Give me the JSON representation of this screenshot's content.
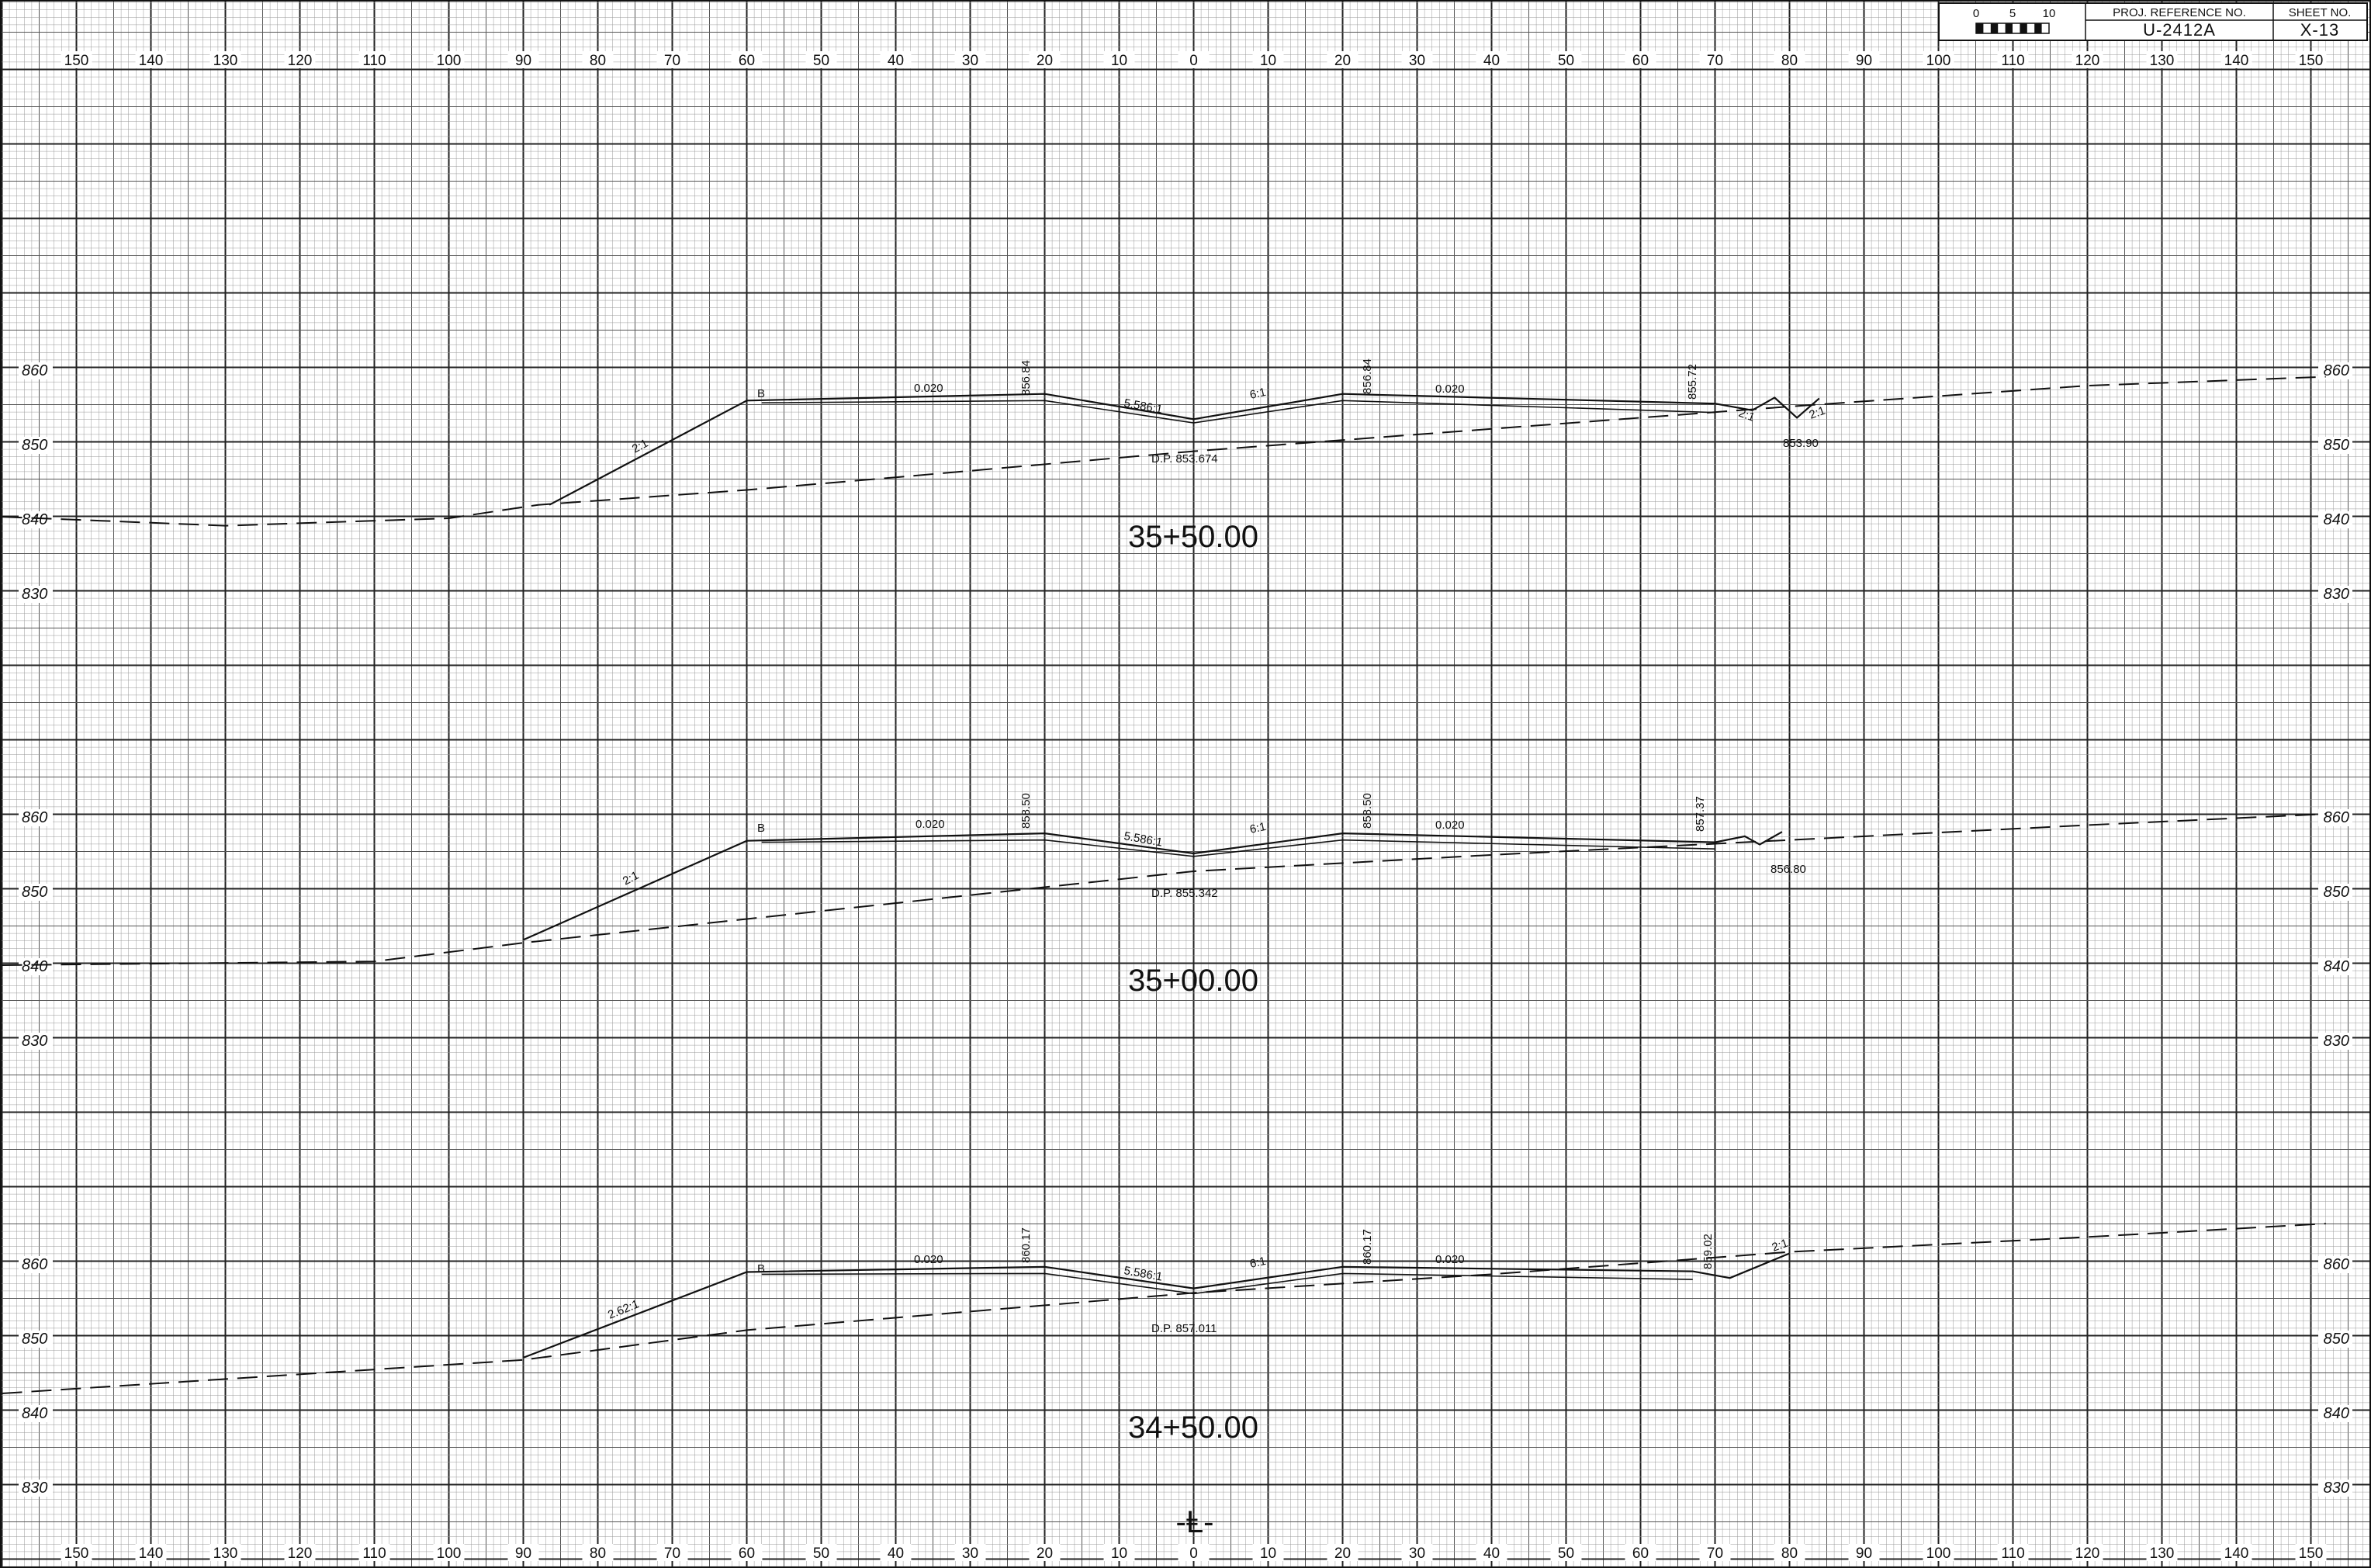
{
  "title_block": {
    "scale": {
      "ticks": [
        "0",
        "5",
        "10"
      ]
    },
    "proj_ref_label": "PROJ. REFERENCE NO.",
    "proj_ref_value": "U-2412A",
    "sheet_no_label": "SHEET NO.",
    "sheet_no_value": "X-13"
  },
  "offset_labels": [
    "150",
    "140",
    "130",
    "120",
    "110",
    "100",
    "90",
    "80",
    "70",
    "60",
    "50",
    "40",
    "30",
    "20",
    "10",
    "0",
    "10",
    "20",
    "30",
    "40",
    "50",
    "60",
    "70",
    "80",
    "90",
    "100",
    "110",
    "120",
    "130",
    "140",
    "150"
  ],
  "centerline_symbol": "-Ⱡ-",
  "sections": [
    {
      "station": "35+50.00",
      "elevation_labels": [
        "860",
        "850",
        "840",
        "830"
      ],
      "existing_ground": [
        [
          -160,
          840.2
        ],
        [
          -130,
          839
        ],
        [
          -100,
          840
        ],
        [
          -88,
          841.8
        ],
        [
          -60,
          843.8
        ],
        [
          -40,
          845.5
        ],
        [
          0,
          849
        ],
        [
          40,
          852
        ],
        [
          80,
          855
        ],
        [
          120,
          857.8
        ],
        [
          152,
          859
        ]
      ],
      "proposed_top": [
        [
          -86.5,
          841.8
        ],
        [
          -60,
          855.8
        ],
        [
          -20,
          856.7
        ],
        [
          0,
          853.3
        ],
        [
          20,
          856.7
        ],
        [
          70,
          855.4
        ],
        [
          75,
          854.5
        ],
        [
          78,
          856.2
        ],
        [
          81,
          853.5
        ],
        [
          84,
          856.1
        ]
      ],
      "proposed_bottom": [
        [
          -58,
          855.5
        ],
        [
          -20,
          855.8
        ],
        [
          0,
          852.8
        ],
        [
          20,
          855.8
        ],
        [
          70,
          854.2
        ]
      ],
      "labels": {
        "cut_fill_slope": "2:1",
        "curb": "B",
        "left_cross_slope": "0.020",
        "left_shoulder_elev": "856.84",
        "median_slope": "5.586:1",
        "right_median_slope": "6:1",
        "right_shoulder_elev": "856.84",
        "right_cross_slope": "0.020",
        "right_edge_elev": "855.72",
        "ditch_slope_1": "2:1",
        "ditch_slope_2": "2:1",
        "ditch_elev": "853.90",
        "design_point": "D.P. 853.674"
      }
    },
    {
      "station": "35+00.00",
      "elevation_labels": [
        "860",
        "850",
        "840",
        "830"
      ],
      "existing_ground": [
        [
          -160,
          840
        ],
        [
          -110,
          840.5
        ],
        [
          -90,
          843
        ],
        [
          -60,
          846.2
        ],
        [
          0,
          852.6
        ],
        [
          40,
          854.8
        ],
        [
          80,
          856.8
        ],
        [
          120,
          858.8
        ],
        [
          152,
          860.3
        ]
      ],
      "proposed_top": [
        [
          -90,
          843.4
        ],
        [
          -60,
          856.7
        ],
        [
          -20,
          857.7
        ],
        [
          0,
          855
        ],
        [
          20,
          857.7
        ],
        [
          70,
          856.5
        ],
        [
          74,
          857.3
        ],
        [
          76,
          856.2
        ],
        [
          79,
          857.9
        ]
      ],
      "proposed_bottom": [
        [
          -58,
          856.5
        ],
        [
          -20,
          856.8
        ],
        [
          0,
          854.6
        ],
        [
          20,
          856.8
        ],
        [
          70,
          855.6
        ]
      ],
      "labels": {
        "cut_fill_slope": "2:1",
        "curb": "B",
        "left_cross_slope": "0.020",
        "left_shoulder_elev": "858.50",
        "median_slope": "5.586:1",
        "right_median_slope": "6:1",
        "right_shoulder_elev": "858.50",
        "right_cross_slope": "0.020",
        "right_edge_elev": "857.37",
        "ditch_elev": "856.80",
        "design_point": "D.P. 855.342"
      }
    },
    {
      "station": "34+50.00",
      "elevation_labels": [
        "860",
        "850",
        "840",
        "830"
      ],
      "existing_ground": [
        [
          -160,
          842.5
        ],
        [
          -90,
          847
        ],
        [
          -60,
          851
        ],
        [
          0,
          856
        ],
        [
          40,
          858.5
        ],
        [
          80,
          861.5
        ],
        [
          120,
          863.5
        ],
        [
          152,
          865.3
        ]
      ],
      "proposed_top": [
        [
          -90,
          847.3
        ],
        [
          -60,
          858.8
        ],
        [
          -20,
          859.5
        ],
        [
          0,
          856.6
        ],
        [
          20,
          859.5
        ],
        [
          67,
          858.9
        ],
        [
          72,
          858
        ],
        [
          80,
          861.3
        ]
      ],
      "proposed_bottom": [
        [
          -58,
          858.5
        ],
        [
          -20,
          858.6
        ],
        [
          0,
          855.9
        ],
        [
          20,
          858.6
        ],
        [
          67,
          857.8
        ]
      ],
      "labels": {
        "cut_fill_slope": "2.62:1",
        "curb": "B",
        "left_cross_slope": "0.020",
        "left_shoulder_elev": "860.17",
        "median_slope": "5.586:1",
        "right_median_slope": "6:1",
        "right_shoulder_elev": "860.17",
        "right_cross_slope": "0.020",
        "right_edge_elev": "859.02",
        "ditch_slope_1": "2:1",
        "design_point": "D.P. 857.011"
      }
    }
  ]
}
